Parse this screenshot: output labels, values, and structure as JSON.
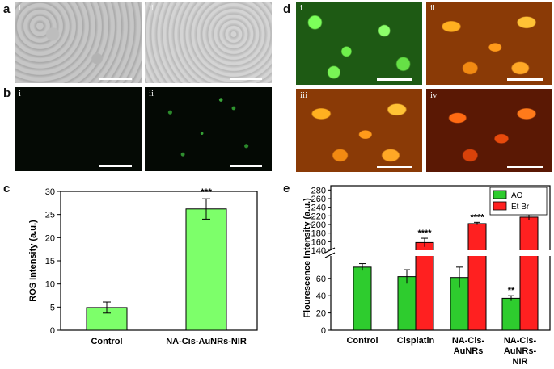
{
  "panels": {
    "a": {
      "letter": "a",
      "subs": [
        "i",
        "ii"
      ]
    },
    "b": {
      "letter": "b",
      "subs": [
        "i",
        "ii"
      ]
    },
    "c": {
      "letter": "c"
    },
    "d": {
      "letter": "d",
      "subs": [
        "i",
        "ii",
        "iii",
        "iv"
      ]
    },
    "e": {
      "letter": "e"
    }
  },
  "colors": {
    "bar_green": "#7dff6a",
    "ao_green": "#2ecc2e",
    "etbr_red": "#ff2020",
    "axis": "#000000"
  },
  "chart_data": [
    {
      "id": "c",
      "type": "bar",
      "categories": [
        "Control",
        "NA-Cis-AuNRs-NIR"
      ],
      "values": [
        4.9,
        26.2
      ],
      "errors": [
        1.2,
        2.2
      ],
      "annotations": [
        "",
        "***"
      ],
      "ylabel": "ROS Intensity (a.u.)",
      "xlabel": "",
      "ylim": [
        0,
        30
      ],
      "yticks": [
        0,
        5,
        10,
        15,
        20,
        25,
        30
      ],
      "grid": false
    },
    {
      "id": "e",
      "type": "bar",
      "categories": [
        "Control",
        "Cisplatin",
        "NA-Cis-\nAuNRs",
        "NA-Cis-\nAuNRs-\nNIR"
      ],
      "series": [
        {
          "name": "AO",
          "values": [
            73,
            62,
            61,
            37
          ],
          "errors": [
            4,
            8,
            12,
            3
          ],
          "annotations": [
            "",
            "",
            "",
            "**"
          ]
        },
        {
          "name": "Et Br",
          "values": [
            null,
            158,
            202,
            217
          ],
          "errors": [
            null,
            10,
            3,
            6
          ],
          "annotations": [
            "",
            "****",
            "****",
            "****"
          ]
        }
      ],
      "ylabel": "Flourescence Intensity (a.u.)",
      "xlabel": "",
      "axis_break": [
        85,
        140
      ],
      "lower_range": [
        0,
        85
      ],
      "upper_range": [
        140,
        290
      ],
      "yticks_lower": [
        0,
        20,
        40,
        60
      ],
      "yticks_upper": [
        140,
        160,
        180,
        200,
        220,
        240,
        260,
        280
      ],
      "legend_position": "top-right",
      "grid": false
    }
  ]
}
